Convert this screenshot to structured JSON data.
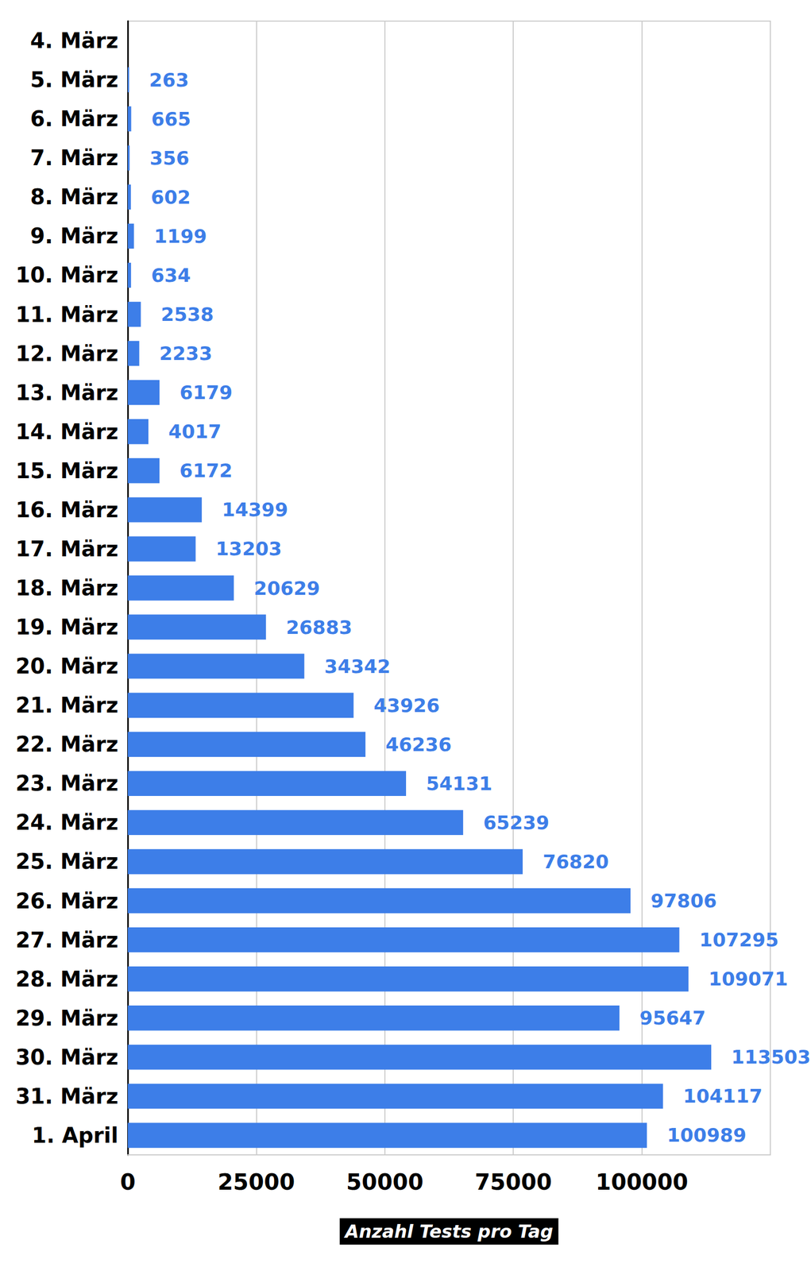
{
  "chart_data": {
    "type": "bar",
    "orientation": "horizontal",
    "xlabel": "Anzahl Tests pro Tag",
    "categories": [
      "4. März",
      "5. März",
      "6. März",
      "7. März",
      "8. März",
      "9. März",
      "10. März",
      "11. März",
      "12. März",
      "13. März",
      "14. März",
      "15. März",
      "16. März",
      "17. März",
      "18. März",
      "19. März",
      "20. März",
      "21. März",
      "22. März",
      "23. März",
      "24. März",
      "25. März",
      "26. März",
      "27. März",
      "28. März",
      "29. März",
      "30. März",
      "31. März",
      "1. April"
    ],
    "values": [
      null,
      263,
      665,
      356,
      602,
      1199,
      634,
      2538,
      2233,
      6179,
      4017,
      6172,
      14399,
      13203,
      20629,
      26883,
      34342,
      43926,
      46236,
      54131,
      65239,
      76820,
      97806,
      107295,
      109071,
      95647,
      113503,
      104117,
      100989
    ],
    "color": "#3d7ee8",
    "xlim": [
      0,
      125000
    ],
    "xticks": [
      0,
      25000,
      50000,
      75000,
      100000
    ],
    "grid": true,
    "data_labels": true
  }
}
